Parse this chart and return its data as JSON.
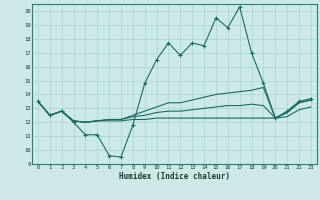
{
  "xlabel": "Humidex (Indice chaleur)",
  "bg_color": "#cce9e7",
  "grid_color": "#aad4d0",
  "line_color": "#1a6b5e",
  "xlim": [
    -0.5,
    23.5
  ],
  "ylim": [
    9,
    20.5
  ],
  "yticks": [
    9,
    10,
    11,
    12,
    13,
    14,
    15,
    16,
    17,
    18,
    19,
    20
  ],
  "xticks": [
    0,
    1,
    2,
    3,
    4,
    5,
    6,
    7,
    8,
    9,
    10,
    11,
    12,
    13,
    14,
    15,
    16,
    17,
    18,
    19,
    20,
    21,
    22,
    23
  ],
  "line1_y": [
    13.5,
    12.5,
    12.8,
    12.0,
    11.1,
    11.1,
    9.6,
    9.5,
    11.8,
    14.8,
    16.5,
    17.7,
    16.8,
    17.7,
    17.5,
    19.5,
    18.8,
    20.3,
    17.0,
    14.8,
    12.3,
    12.8,
    13.5,
    13.7
  ],
  "line2_y": [
    13.5,
    12.5,
    12.8,
    12.1,
    12.0,
    12.1,
    12.1,
    12.1,
    12.2,
    12.2,
    12.3,
    12.3,
    12.3,
    12.3,
    12.3,
    12.3,
    12.3,
    12.3,
    12.3,
    12.3,
    12.3,
    12.4,
    12.9,
    13.1
  ],
  "line3_y": [
    13.5,
    12.5,
    12.8,
    12.1,
    12.0,
    12.1,
    12.2,
    12.2,
    12.4,
    12.5,
    12.7,
    12.8,
    12.8,
    12.9,
    13.0,
    13.1,
    13.2,
    13.2,
    13.3,
    13.2,
    12.3,
    12.7,
    13.4,
    13.6
  ],
  "line4_y": [
    13.5,
    12.5,
    12.8,
    12.1,
    12.0,
    12.1,
    12.2,
    12.2,
    12.5,
    12.8,
    13.1,
    13.4,
    13.4,
    13.6,
    13.8,
    14.0,
    14.1,
    14.2,
    14.3,
    14.5,
    12.3,
    12.7,
    13.4,
    13.6
  ]
}
